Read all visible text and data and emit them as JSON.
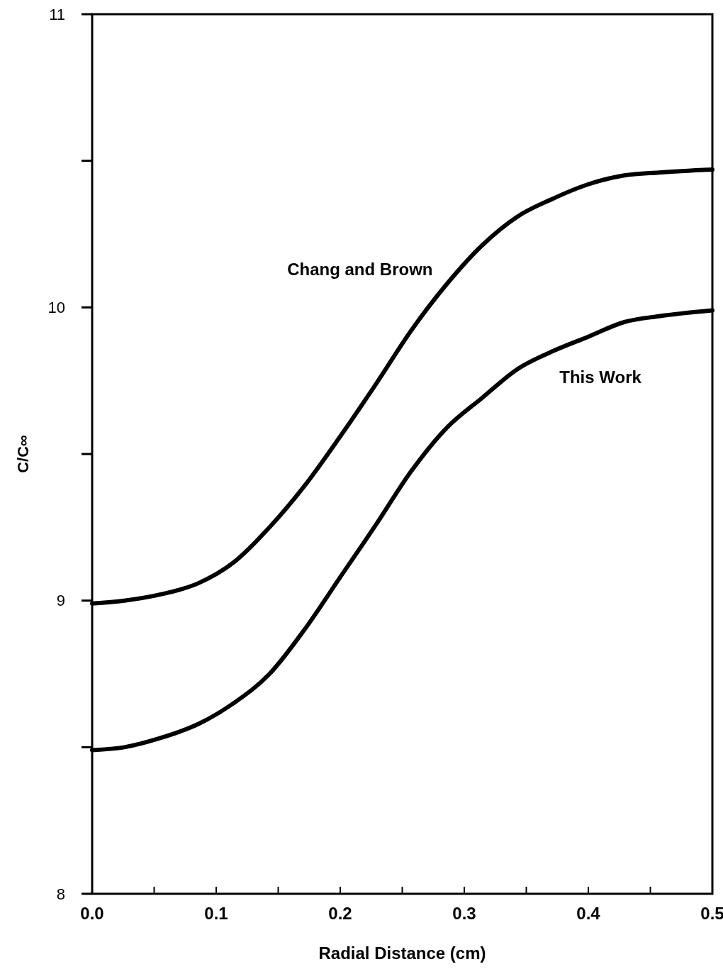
{
  "chart_data": {
    "type": "line",
    "xlabel": "Radial Distance (cm)",
    "ylabel": "C/C∞",
    "xlim": [
      0,
      0.5
    ],
    "xticks": [
      {
        "value": 0,
        "label": "0.0"
      },
      {
        "value": 0.05,
        "label": null
      },
      0.1,
      {
        "value": 0.15,
        "label": null
      },
      0.2,
      {
        "value": 0.25,
        "label": null
      },
      0.3,
      {
        "value": 0.35,
        "label": null
      },
      0.4,
      {
        "value": 0.45,
        "label": null
      },
      0.5
    ],
    "ylim": [
      8,
      11
    ],
    "yticks": [
      8,
      {
        "value": 8.5,
        "label": null
      },
      9,
      {
        "value": 9.5,
        "label": null
      },
      10,
      {
        "value": 10.5,
        "label": null
      },
      11
    ],
    "grid": false,
    "legend": false,
    "marker": "none",
    "line_style": "solid",
    "series": [
      {
        "name": "Chang and Brown",
        "color": "#000000",
        "x": [
          0,
          0.026,
          0.054,
          0.086,
          0.114,
          0.143,
          0.171,
          0.2,
          0.229,
          0.257,
          0.286,
          0.314,
          0.343,
          0.371,
          0.4,
          0.429,
          0.457,
          0.5
        ],
        "values": [
          8.99,
          9.0,
          9.02,
          9.06,
          9.13,
          9.25,
          9.39,
          9.56,
          9.74,
          9.92,
          10.08,
          10.21,
          10.31,
          10.37,
          10.42,
          10.45,
          10.46,
          10.47
        ]
      },
      {
        "name": "This Work",
        "color": "#000000",
        "x": [
          0,
          0.026,
          0.054,
          0.086,
          0.114,
          0.143,
          0.171,
          0.2,
          0.229,
          0.257,
          0.286,
          0.314,
          0.343,
          0.371,
          0.4,
          0.429,
          0.457,
          0.5
        ],
        "values": [
          8.49,
          8.5,
          8.53,
          8.58,
          8.65,
          8.75,
          8.9,
          9.08,
          9.26,
          9.44,
          9.59,
          9.69,
          9.79,
          9.85,
          9.9,
          9.95,
          9.97,
          9.99
        ]
      }
    ]
  }
}
